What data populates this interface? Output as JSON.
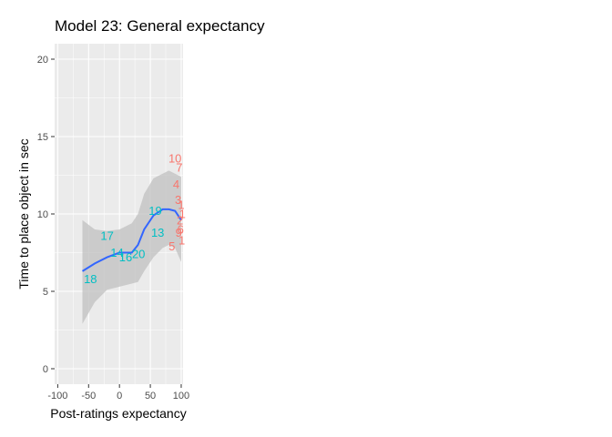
{
  "chart_data": {
    "type": "scatter",
    "title": "Model 23: General expectancy",
    "xlabel": "Post-ratings expectancy",
    "ylabel": "Time to place object in sec",
    "xlim": [
      -105,
      103
    ],
    "ylim": [
      -1,
      21
    ],
    "xticks": [
      -100,
      -50,
      0,
      50,
      100
    ],
    "xtick_labels": [
      "-100",
      "-50",
      "0",
      "50",
      "100"
    ],
    "yticks": [
      0,
      5,
      10,
      15,
      20
    ],
    "ytick_labels": [
      "0",
      "5",
      "10",
      "15",
      "20"
    ],
    "grid": true,
    "legend": "none",
    "colors": {
      "panel": "#ebebeb",
      "grid": "#ffffff",
      "group_a": "#f8766d",
      "group_b": "#00bfc4",
      "smooth": "#3366ff",
      "ribbon": "#c0c0c0"
    },
    "series": [
      {
        "group": "a",
        "points": [
          {
            "label": "10",
            "x": 90,
            "y": 13.6
          },
          {
            "label": "7",
            "x": 97,
            "y": 13.0
          },
          {
            "label": "4",
            "x": 92,
            "y": 11.9
          },
          {
            "label": "3",
            "x": 95,
            "y": 10.9
          },
          {
            "label": "1",
            "x": 100,
            "y": 10.6
          },
          {
            "label": "1",
            "x": 102,
            "y": 10.0
          },
          {
            "label": "2",
            "x": 98,
            "y": 9.6
          },
          {
            "label": "6",
            "x": 99,
            "y": 9.0
          },
          {
            "label": "9",
            "x": 96,
            "y": 8.8
          },
          {
            "label": "1",
            "x": 101,
            "y": 8.3
          },
          {
            "label": "5",
            "x": 85,
            "y": 7.9
          }
        ]
      },
      {
        "group": "b",
        "points": [
          {
            "label": "18",
            "x": -47,
            "y": 5.8
          },
          {
            "label": "17",
            "x": -20,
            "y": 8.6
          },
          {
            "label": "14",
            "x": -4,
            "y": 7.5
          },
          {
            "label": "16",
            "x": 10,
            "y": 7.2
          },
          {
            "label": "20",
            "x": 31,
            "y": 7.4
          },
          {
            "label": "13",
            "x": 62,
            "y": 8.8
          },
          {
            "label": "19",
            "x": 58,
            "y": 10.2
          }
        ]
      }
    ],
    "smooth": {
      "x": [
        -60,
        -40,
        -20,
        0,
        20,
        30,
        40,
        55,
        70,
        80,
        90,
        100
      ],
      "y": [
        6.3,
        6.8,
        7.2,
        7.5,
        7.5,
        8.0,
        9.0,
        9.9,
        10.3,
        10.3,
        10.2,
        9.6
      ],
      "ymin": [
        2.9,
        4.3,
        5.1,
        5.3,
        5.5,
        5.6,
        6.3,
        7.2,
        7.8,
        8.0,
        7.8,
        6.9
      ],
      "ymax": [
        9.6,
        9.0,
        8.9,
        9.0,
        9.4,
        10.0,
        11.3,
        12.3,
        12.6,
        12.8,
        12.6,
        12.4
      ]
    }
  }
}
